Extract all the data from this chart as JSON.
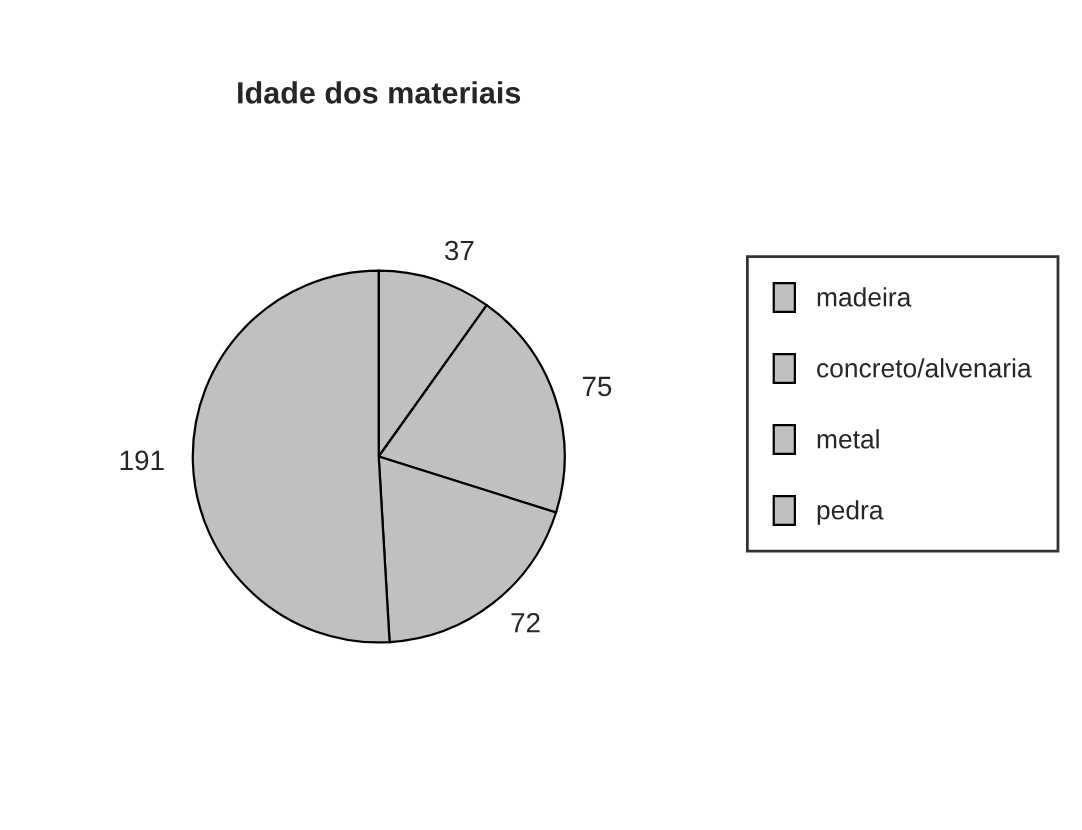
{
  "chart_data": {
    "type": "pie",
    "title": "Idade dos materiais",
    "categories": [
      "madeira",
      "concreto/alvenaria",
      "metal",
      "pedra"
    ],
    "values": [
      37,
      75,
      72,
      191
    ],
    "colors": [
      "#c0c0c0",
      "#c0c0c0",
      "#c0c0c0",
      "#c0c0c0"
    ],
    "data_labels": true,
    "legend": "right"
  }
}
